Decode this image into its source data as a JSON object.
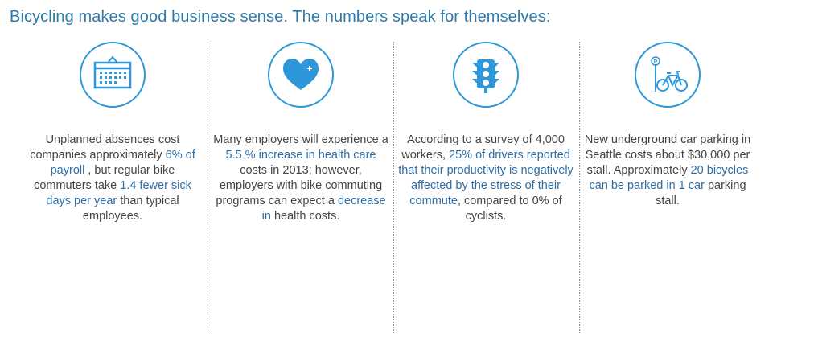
{
  "headline": "Bicycling makes good business sense. The numbers speak for themselves:",
  "colors": {
    "accent": "#2e97da",
    "highlight": "#2e6ea6",
    "body_text": "#444444",
    "headline": "#2e79a8"
  },
  "cards": [
    {
      "icon": "calendar-icon",
      "segments": [
        {
          "text": "Unplanned absences cost companies approximately ",
          "highlight": false
        },
        {
          "text": "6% of payroll",
          "highlight": true
        },
        {
          "text": " , but regular bike commuters take ",
          "highlight": false
        },
        {
          "text": "1.4 fewer sick days per year",
          "highlight": true
        },
        {
          "text": " than typical employees.",
          "highlight": false
        }
      ]
    },
    {
      "icon": "heart-icon",
      "segments": [
        {
          "text": "Many employers will experience a ",
          "highlight": false
        },
        {
          "text": "5.5 % increase in health care",
          "highlight": true
        },
        {
          "text": " costs in 2013; however, employers with bike commuting programs can expect a ",
          "highlight": false
        },
        {
          "text": "decrease in",
          "highlight": true
        },
        {
          "text": " health costs.",
          "highlight": false
        }
      ]
    },
    {
      "icon": "traffic-light-icon",
      "segments": [
        {
          "text": "According to a survey of 4,000 workers, ",
          "highlight": false
        },
        {
          "text": "25% of drivers reported that their productivity is negatively affected by the stress of their commute",
          "highlight": true
        },
        {
          "text": ", compared to 0% of cyclists.",
          "highlight": false
        }
      ]
    },
    {
      "icon": "bicycle-parking-icon",
      "segments": [
        {
          "text": "New underground car parking in Seattle costs about $30,000 per stall. Approximately ",
          "highlight": false
        },
        {
          "text": "20 bicycles can be parked in 1 car",
          "highlight": true
        },
        {
          "text": " parking stall.",
          "highlight": false
        }
      ]
    }
  ]
}
